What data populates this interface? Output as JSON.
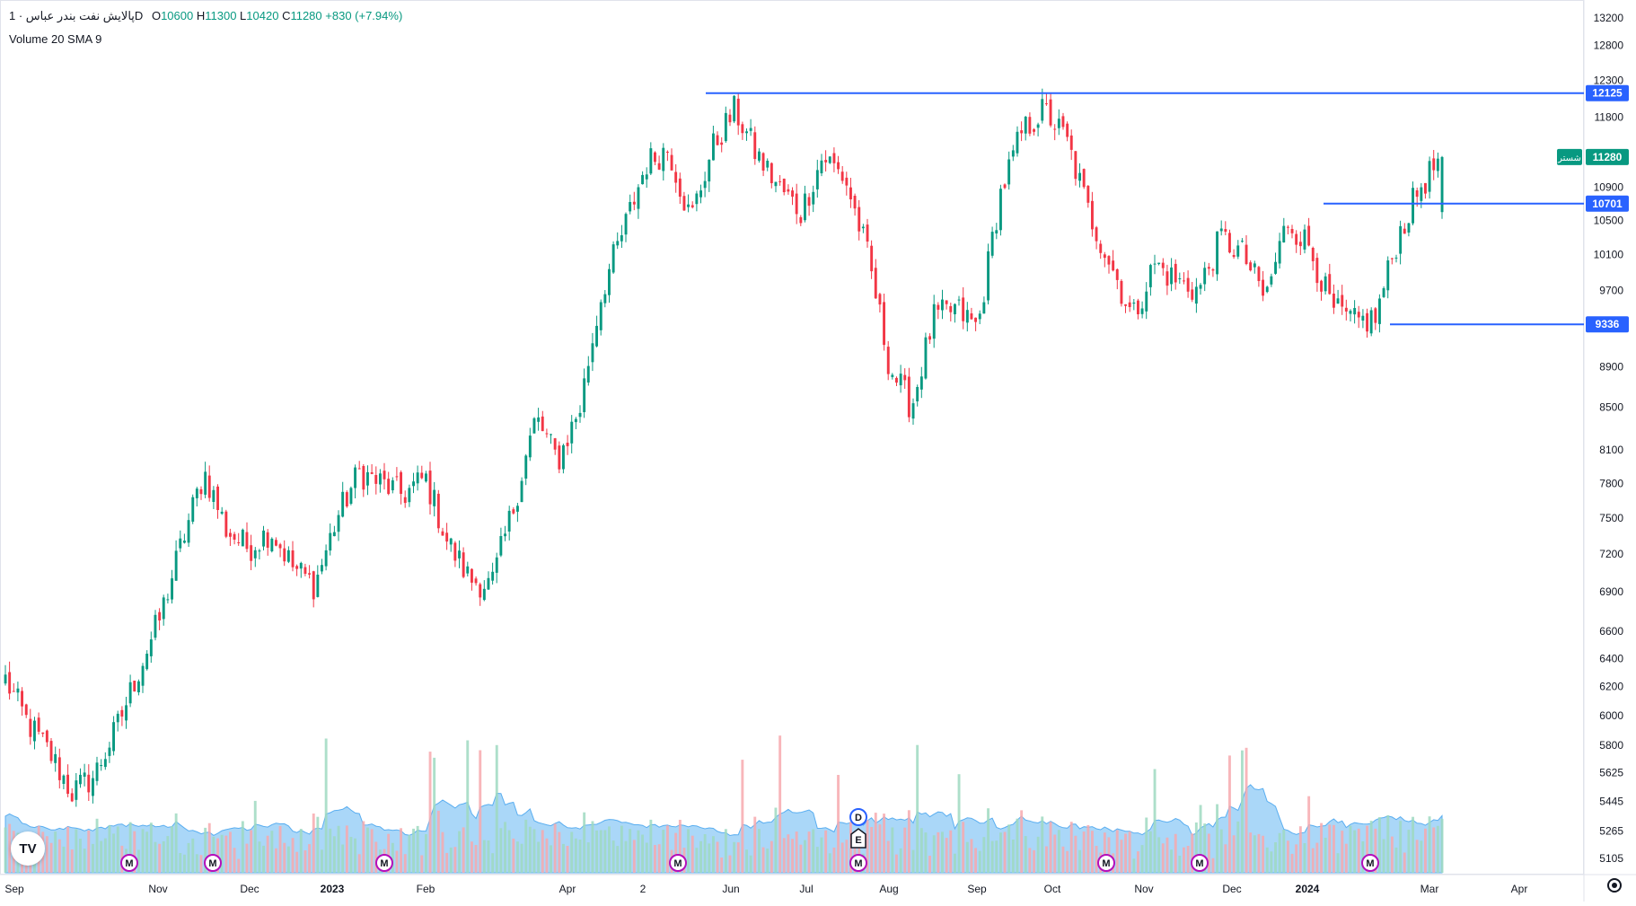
{
  "header": {
    "symbol": "پالایش نفت بندر عباس · 1D",
    "open_label": "O",
    "open": "10600",
    "high_label": "H",
    "high": "11300",
    "low_label": "L",
    "low": "10420",
    "close_label": "C",
    "close": "11280",
    "change": "+830 (+7.94%)",
    "volume_label": "Volume 20 SMA 9"
  },
  "colors": {
    "up": "#089981",
    "down": "#f23645",
    "line": "#2962ff",
    "vol_up": "#9fd9c1",
    "vol_down": "#f7a9ae",
    "vol_area": "#7cc2f5"
  },
  "chart_data": {
    "type": "candlestick",
    "y_scale": "log",
    "y_ticks": [
      13200,
      12800,
      12300,
      11800,
      11280,
      10900,
      10500,
      10100,
      9700,
      9336,
      8900,
      8500,
      8100,
      7800,
      7500,
      7200,
      6900,
      6600,
      6400,
      6200,
      6000,
      5800,
      5625,
      5445,
      5265,
      5105
    ],
    "x_labels": [
      "Sep",
      "Nov",
      "Dec",
      "2023",
      "Feb",
      "Apr",
      "2",
      "Jun",
      "Jul",
      "Aug",
      "Sep",
      "Oct",
      "Nov",
      "Dec",
      "2024",
      "Mar",
      "Apr"
    ],
    "price_labels": [
      {
        "value": "12125",
        "tag": ""
      },
      {
        "value": "11280",
        "tag": "شستر"
      },
      {
        "value": "10701",
        "tag": ""
      },
      {
        "value": "9336",
        "tag": ""
      }
    ],
    "horizontal_lines": [
      {
        "value": 12125,
        "from_month": "May 2023",
        "to": "right-edge"
      },
      {
        "value": 10701,
        "from_month": "Jan 2024",
        "to": "right-edge"
      },
      {
        "value": 9336,
        "from_month": "Feb 2024",
        "to": "right-edge"
      }
    ],
    "price_anchors": [
      6250,
      5950,
      5750,
      5500,
      5600,
      5900,
      6300,
      6700,
      7300,
      7900,
      7400,
      7250,
      7400,
      7100,
      6950,
      7500,
      7900,
      7800,
      7700,
      7850,
      7300,
      7000,
      6950,
      7600,
      8400,
      8000,
      8500,
      9700,
      10400,
      11200,
      11400,
      10500,
      11400,
      11900,
      11300,
      10900,
      10600,
      11300,
      11000,
      10100,
      8900,
      8500,
      9400,
      9500,
      9300,
      10800,
      11600,
      11900,
      11500,
      10600,
      10000,
      9400,
      10000,
      9800,
      9700,
      10300,
      10100,
      9600,
      10500,
      10200,
      9500,
      9350,
      9400,
      10300,
      10900,
      11280
    ],
    "volume": {
      "sma_period": 9,
      "up_color": "green",
      "down_color": "red",
      "sma_fill": "blue"
    },
    "events": [
      {
        "type": "M"
      },
      {
        "type": "M"
      },
      {
        "type": "M"
      },
      {
        "type": "M"
      },
      {
        "type": "M"
      },
      {
        "type": "E"
      },
      {
        "type": "D"
      },
      {
        "type": "M"
      },
      {
        "type": "M"
      },
      {
        "type": "M"
      }
    ]
  }
}
